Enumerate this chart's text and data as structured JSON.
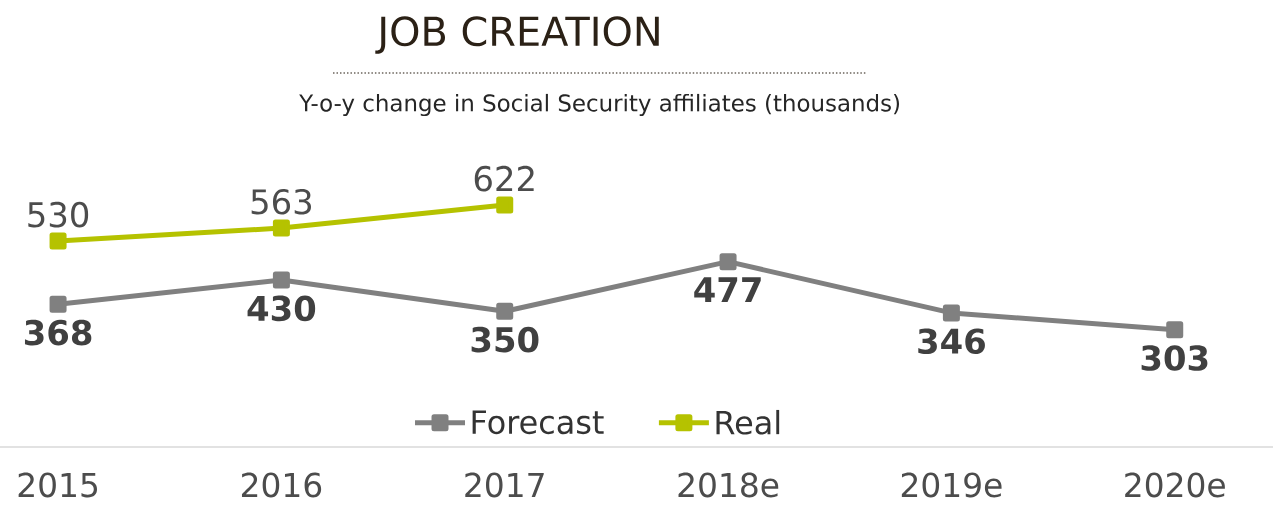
{
  "chart_data": {
    "type": "line",
    "title": "JOB CREATION",
    "subtitle": "Y-o-y change in Social Security affiliates (thousands)",
    "categories": [
      "2015",
      "2016",
      "2017",
      "2018e",
      "2019e",
      "2020e"
    ],
    "series": [
      {
        "name": "Forecast",
        "color": "#808080",
        "values": [
          368,
          430,
          350,
          477,
          346,
          303
        ]
      },
      {
        "name": "Real",
        "color": "#b5c200",
        "values": [
          530,
          563,
          622,
          null,
          null,
          null
        ]
      }
    ],
    "data_labels": true,
    "legend": "bottom",
    "marker": "square",
    "line_style": "solid",
    "grid": false
  }
}
